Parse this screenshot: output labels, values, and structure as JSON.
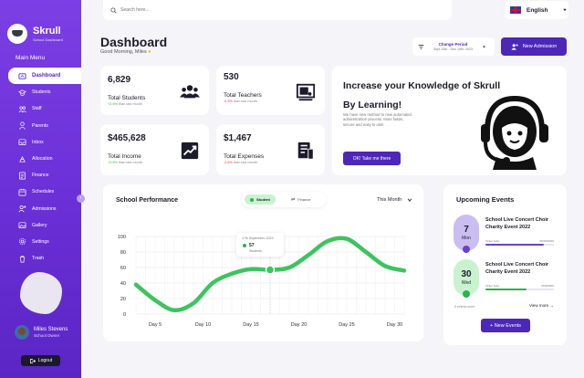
{
  "brand": {
    "name": "Skrull",
    "subtitle": "School Dashboard"
  },
  "sidebar": {
    "menu_title": "Main Menu",
    "items": [
      {
        "label": "Dashboard",
        "icon": "dashboard-icon"
      },
      {
        "label": "Students",
        "icon": "students-icon"
      },
      {
        "label": "Staff",
        "icon": "staff-icon"
      },
      {
        "label": "Parents",
        "icon": "parents-icon"
      },
      {
        "label": "Inbox",
        "icon": "inbox-icon"
      },
      {
        "label": "Allocation",
        "icon": "allocation-icon"
      },
      {
        "label": "Finance",
        "icon": "finance-icon"
      },
      {
        "label": "Schedules",
        "icon": "schedules-icon"
      },
      {
        "label": "Admissions",
        "icon": "admissions-icon"
      },
      {
        "label": "Gallery",
        "icon": "gallery-icon"
      },
      {
        "label": "Settings",
        "icon": "settings-icon"
      },
      {
        "label": "Trash",
        "icon": "trash-icon"
      }
    ],
    "profile": {
      "name": "Miles Stevens",
      "role": "School Owner"
    },
    "logout_label": "Logout"
  },
  "search": {
    "placeholder": "Search here..."
  },
  "language": {
    "selected": "English"
  },
  "header": {
    "title": "Dashboard",
    "greeting": "Good Morning, Miles",
    "period_label": "Change Period",
    "period_range": "Sept 15th - Dec 19th, 2023",
    "new_admission_label": "New Admission"
  },
  "stats": [
    {
      "value": "6,829",
      "label": "Total Students",
      "change": "+2.5%",
      "change_suffix": "than last month",
      "trend": "up",
      "icon": "students-group-icon"
    },
    {
      "value": "530",
      "label": "Total Teachers",
      "change": "-0.3%",
      "change_suffix": "than last month",
      "trend": "down",
      "icon": "teacher-board-icon"
    },
    {
      "value": "$465,628",
      "label": "Total Income",
      "change": "+2.5%",
      "change_suffix": "than last month",
      "trend": "up",
      "icon": "income-chart-icon"
    },
    {
      "value": "$1,467",
      "label": "Total Expenses",
      "change": "-2.6%",
      "change_suffix": "than last month",
      "trend": "down",
      "icon": "expenses-receipt-icon"
    }
  ],
  "promo": {
    "title": "Increase your Knowledge of Skrull By Learning!",
    "text": "We have new method to new automated administration process. More faster, secure and easy to use!",
    "button_label": "OK! Take me there"
  },
  "performance": {
    "title": "School Performance",
    "toggle": [
      "Student",
      "Finance"
    ],
    "period": "This Month",
    "tooltip": {
      "date": "17th September, 2023",
      "value": "57",
      "label": "Students"
    }
  },
  "chart_data": {
    "type": "line",
    "x": [
      3,
      5,
      7,
      9,
      11,
      13,
      15,
      17,
      19,
      21,
      23,
      25,
      27,
      29,
      31
    ],
    "values": [
      38,
      18,
      5,
      14,
      40,
      52,
      58,
      57,
      60,
      76,
      94,
      97,
      80,
      62,
      56
    ],
    "xticks": [
      "Day 5",
      "Day 10",
      "Day 15",
      "Day 20",
      "Day 25",
      "Day 30"
    ],
    "xtick_values": [
      5,
      10,
      15,
      20,
      25,
      30
    ],
    "yticks": [
      0,
      20,
      40,
      60,
      80,
      100
    ],
    "ylim": [
      0,
      100
    ],
    "xlim": [
      3,
      31
    ],
    "color": "#3cc45e",
    "grid": true
  },
  "events": {
    "title": "Upcoming Events",
    "items": [
      {
        "day": "7",
        "month": "Mon",
        "name": "School Live Concert Choir Charity Event 2022",
        "meta_left": "Ticket Sold",
        "meta_right": "68/1150000",
        "progress": 0.85,
        "color": "#c9bdf2",
        "accent": "#6a3fd0"
      },
      {
        "day": "30",
        "month": "Wed",
        "name": "School Live Concert Choir Charity Event 2022",
        "meta_left": "Ticket Sold",
        "meta_right": "76/600000",
        "progress": 0.6,
        "color": "#c9f2cf",
        "accent": "#2bb34f"
      }
    ],
    "footer": "5 events more",
    "view_more": "View more",
    "new_label": "+ New Events"
  }
}
